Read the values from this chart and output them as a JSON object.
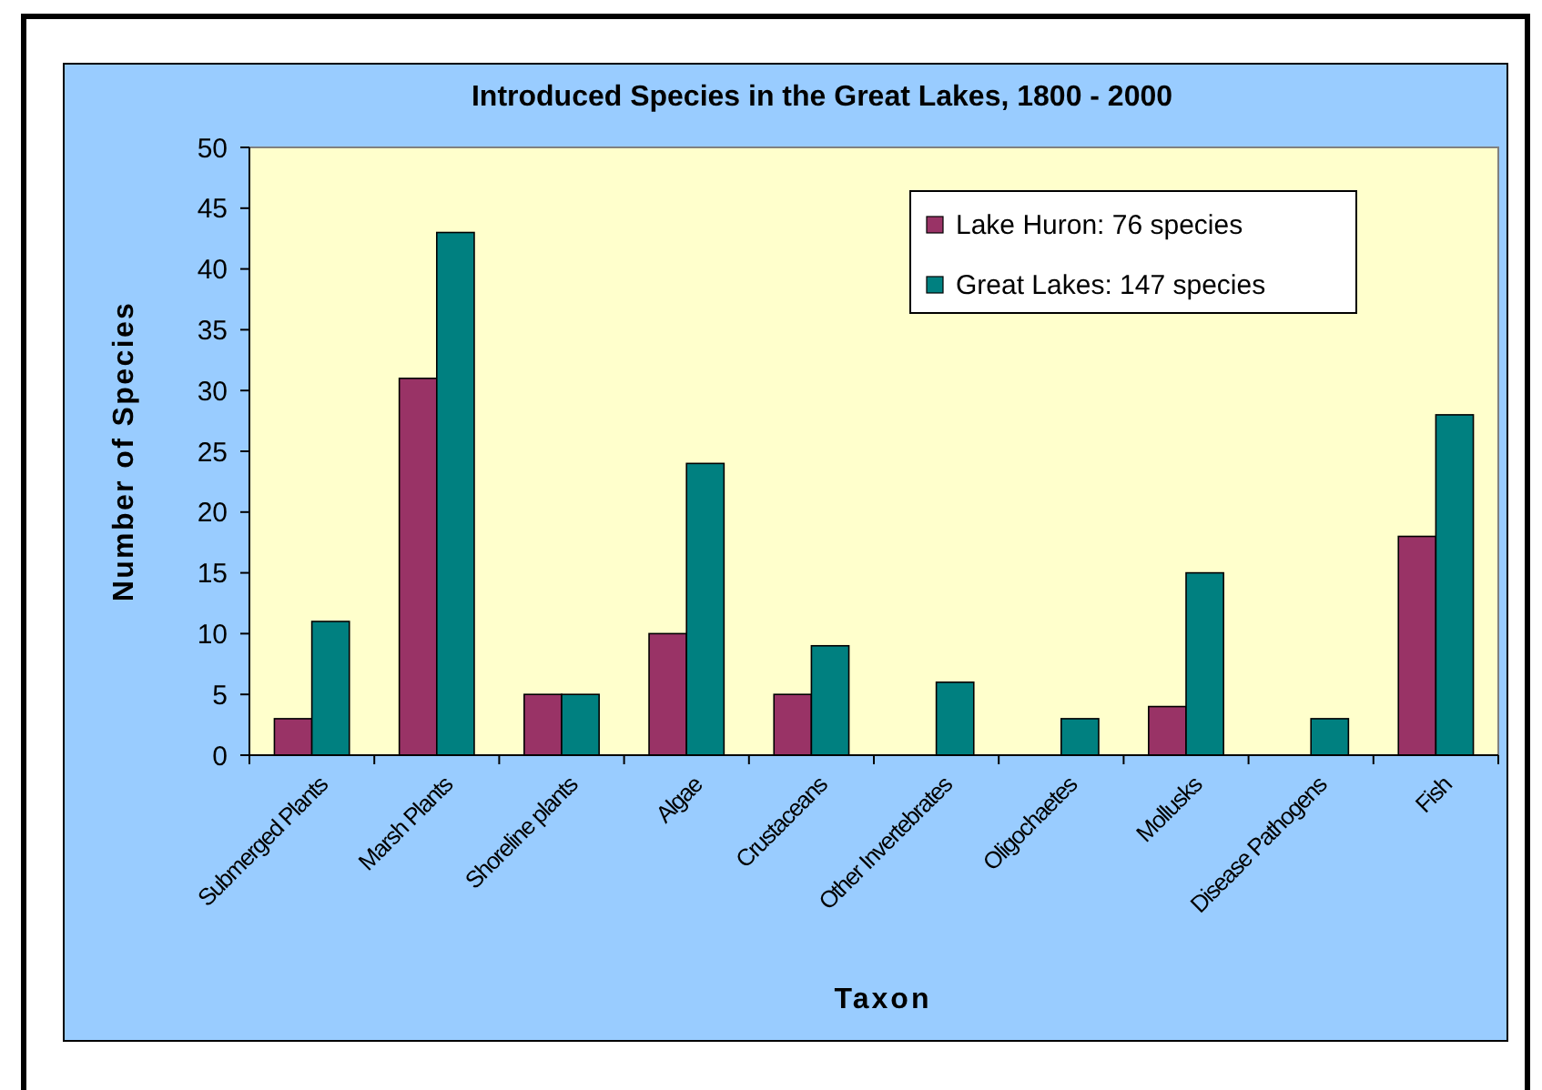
{
  "chart_data": {
    "type": "bar",
    "title": "Introduced Species in the Great Lakes, 1800 - 2000",
    "xlabel": "Taxon",
    "ylabel": "Number of Species",
    "categories": [
      "Submerged Plants",
      "Marsh Plants",
      "Shoreline plants",
      "Algae",
      "Crustaceans",
      "Other Invertebrates",
      "Oligochaetes",
      "Mollusks",
      "Disease Pathogens",
      "Fish"
    ],
    "series": [
      {
        "name": "Lake Huron: 76 species",
        "color": "#993366",
        "values": [
          3,
          31,
          5,
          10,
          5,
          0,
          0,
          4,
          0,
          18
        ]
      },
      {
        "name": "Great Lakes: 147 species",
        "color": "#008080",
        "values": [
          11,
          43,
          5,
          24,
          9,
          6,
          3,
          15,
          3,
          28
        ]
      }
    ],
    "ylim": [
      0,
      50
    ],
    "yticks": [
      0,
      5,
      10,
      15,
      20,
      25,
      30,
      35,
      40,
      45,
      50
    ],
    "grid": false,
    "legend": "top right"
  }
}
